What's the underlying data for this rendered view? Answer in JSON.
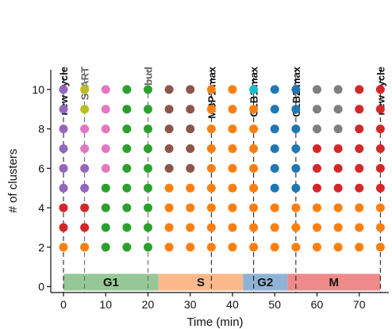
{
  "chart_data": {
    "type": "scatter",
    "title": "",
    "xlabel": "Time (min)",
    "ylabel": "# of clusters",
    "xlim": [
      -3,
      77
    ],
    "ylim": [
      -0.3,
      11
    ],
    "xticks": [
      0,
      10,
      20,
      30,
      40,
      50,
      60,
      70
    ],
    "yticks": [
      0,
      2,
      4,
      6,
      8,
      10
    ],
    "colors": {
      "orange": "#ff7f0e",
      "red": "#d62728",
      "purple": "#9467bd",
      "olive": "#bcbd22",
      "pink": "#e377c2",
      "green": "#2ca02c",
      "brown": "#8c564b",
      "cyan": "#17becf",
      "blue": "#1f77b4",
      "gray": "#7f7f7f"
    },
    "columns": [
      {
        "x": 0,
        "colors": [
          "orange",
          "red",
          "red",
          "purple",
          "purple",
          "purple",
          "purple",
          "purple",
          "purple"
        ]
      },
      {
        "x": 5,
        "colors": [
          "orange",
          "red",
          "red",
          "purple",
          "purple",
          "pink",
          "pink",
          "olive",
          "olive"
        ]
      },
      {
        "x": 10,
        "colors": [
          "green",
          "green",
          "green",
          "green",
          "pink",
          "pink",
          "pink",
          "pink",
          "pink"
        ]
      },
      {
        "x": 15,
        "colors": [
          "green",
          "green",
          "green",
          "green",
          "green",
          "green",
          "green",
          "green",
          "green"
        ]
      },
      {
        "x": 20,
        "colors": [
          "green",
          "green",
          "green",
          "green",
          "green",
          "green",
          "green",
          "green",
          "green"
        ]
      },
      {
        "x": 25,
        "colors": [
          "orange",
          "orange",
          "orange",
          "orange",
          "brown",
          "brown",
          "brown",
          "brown",
          "brown"
        ]
      },
      {
        "x": 30,
        "colors": [
          "orange",
          "orange",
          "orange",
          "orange",
          "brown",
          "brown",
          "brown",
          "brown",
          "brown"
        ]
      },
      {
        "x": 35,
        "colors": [
          "orange",
          "orange",
          "orange",
          "orange",
          "orange",
          "orange",
          "orange",
          "orange",
          "orange"
        ]
      },
      {
        "x": 40,
        "colors": [
          "orange",
          "orange",
          "orange",
          "orange",
          "orange",
          "orange",
          "orange",
          "orange",
          "orange"
        ]
      },
      {
        "x": 45,
        "colors": [
          "orange",
          "orange",
          "orange",
          "orange",
          "orange",
          "orange",
          "orange",
          "orange",
          "cyan"
        ]
      },
      {
        "x": 50,
        "colors": [
          "orange",
          "orange",
          "orange",
          "blue",
          "blue",
          "blue",
          "blue",
          "blue",
          "blue"
        ]
      },
      {
        "x": 55,
        "colors": [
          "orange",
          "orange",
          "orange",
          "blue",
          "blue",
          "blue",
          "blue",
          "blue",
          "blue"
        ]
      },
      {
        "x": 60,
        "colors": [
          "orange",
          "orange",
          "orange",
          "red",
          "red",
          "red",
          "gray",
          "gray",
          "gray"
        ]
      },
      {
        "x": 65,
        "colors": [
          "orange",
          "orange",
          "orange",
          "red",
          "red",
          "red",
          "gray",
          "gray",
          "gray"
        ]
      },
      {
        "x": 70,
        "colors": [
          "orange",
          "orange",
          "orange",
          "red",
          "red",
          "red",
          "red",
          "red",
          "red"
        ]
      },
      {
        "x": 75,
        "colors": [
          "orange",
          "orange",
          "orange",
          "red",
          "red",
          "red",
          "red",
          "red",
          "red"
        ]
      }
    ],
    "y_levels": [
      2,
      3,
      4,
      5,
      6,
      7,
      8,
      9,
      10
    ],
    "phases": [
      {
        "label": "G1",
        "start": 0,
        "end": 22.5,
        "color": "#96c896"
      },
      {
        "label": "S",
        "start": 22.5,
        "end": 42.5,
        "color": "#fbb98b"
      },
      {
        "label": "G2",
        "start": 42.5,
        "end": 53,
        "color": "#8fb3d6"
      },
      {
        "label": "M",
        "start": 53,
        "end": 75,
        "color": "#ee8a8a"
      }
    ],
    "markers": [
      {
        "x": 0,
        "label": "new cycle",
        "color": "#111111"
      },
      {
        "x": 5,
        "label": "START",
        "color": "#666666"
      },
      {
        "x": 20,
        "label": "bud",
        "color": "#666666"
      },
      {
        "x": 35,
        "label": "MBP1 max",
        "color": "#111111"
      },
      {
        "x": 45,
        "label": "CLB1 max",
        "color": "#111111"
      },
      {
        "x": 55,
        "label": "CLB2 max",
        "color": "#111111"
      },
      {
        "x": 75,
        "label": "new cycle",
        "color": "#111111"
      }
    ]
  }
}
